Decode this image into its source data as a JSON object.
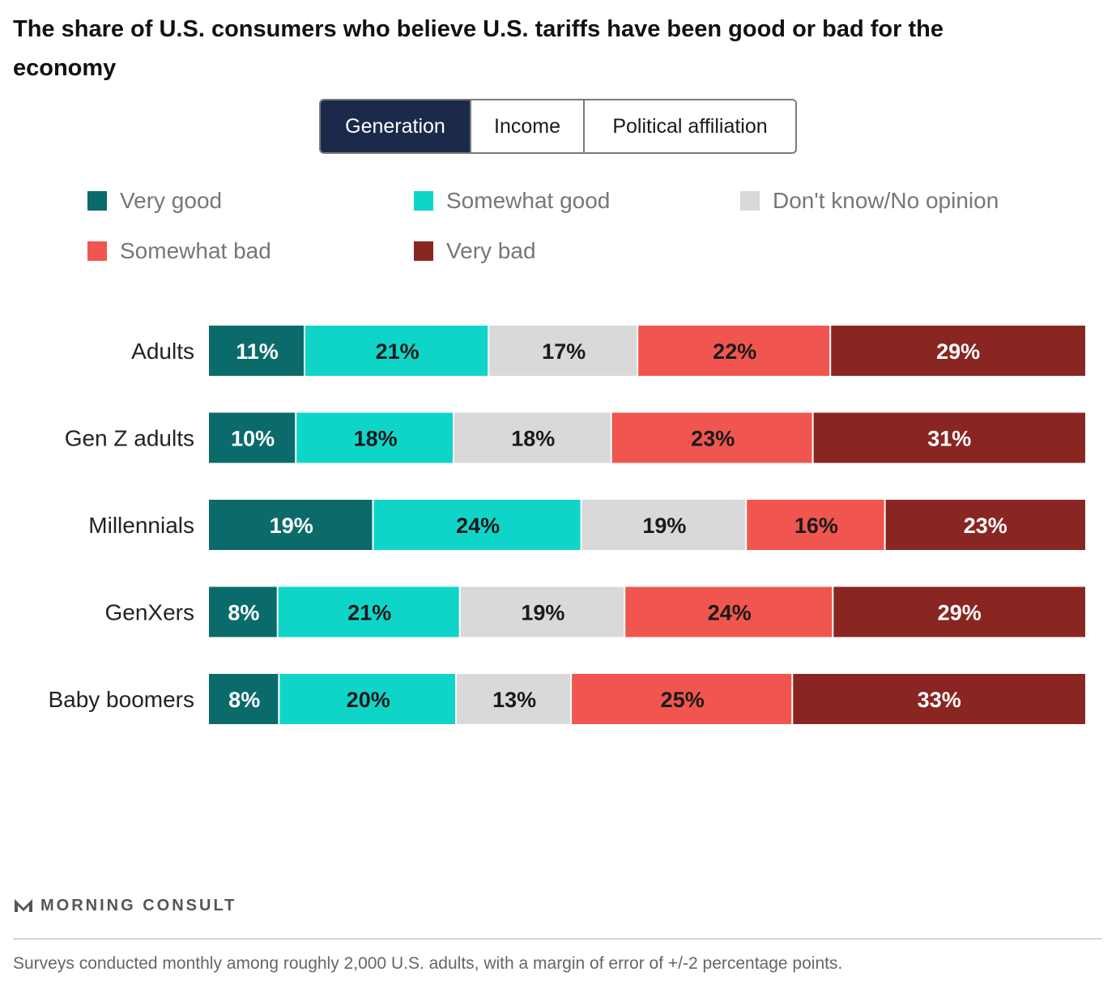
{
  "title": "The share of U.S. consumers who believe U.S. tariffs have been good or bad for the economy",
  "tabs": [
    {
      "label": "Generation",
      "active": true
    },
    {
      "label": "Income",
      "active": false
    },
    {
      "label": "Political affiliation",
      "active": false
    }
  ],
  "colors": {
    "very_good": "#0b6b6b",
    "somewhat_good": "#0fd5c9",
    "dont_know": "#d9d9d9",
    "somewhat_bad": "#f0564f",
    "very_bad": "#892622",
    "tab_active": "#1b2a4a"
  },
  "chart_data": {
    "type": "bar",
    "orientation": "horizontal",
    "stacked": true,
    "normalized": true,
    "categories": [
      "Adults",
      "Gen Z adults",
      "Millennials",
      "GenXers",
      "Baby boomers"
    ],
    "series": [
      {
        "name": "Very good",
        "values": [
          11,
          10,
          19,
          8,
          8
        ],
        "labels": [
          "11%",
          "10%",
          "19%",
          "8%",
          "8%"
        ]
      },
      {
        "name": "Somewhat good",
        "values": [
          21,
          18,
          24,
          21,
          20
        ],
        "labels": [
          "21%",
          "18%",
          "24%",
          "21%",
          "20%"
        ]
      },
      {
        "name": "Don't know/No opinion",
        "values": [
          17,
          18,
          19,
          19,
          13
        ],
        "labels": [
          "17%",
          "18%",
          "19%",
          "19%",
          "13%"
        ]
      },
      {
        "name": "Somewhat bad",
        "values": [
          22,
          23,
          16,
          24,
          25
        ],
        "labels": [
          "22%",
          "23%",
          "16%",
          "24%",
          "25%"
        ]
      },
      {
        "name": "Very bad",
        "values": [
          29,
          31,
          23,
          29,
          33
        ],
        "labels": [
          "29%",
          "31%",
          "23%",
          "29%",
          "33%"
        ]
      }
    ],
    "grid": false,
    "legend_position": "top"
  },
  "brand": {
    "name": "MORNING CONSULT",
    "mark_icon": "morning-consult-logo-icon"
  },
  "footnote": "Surveys conducted monthly among roughly 2,000 U.S. adults, with a margin of error of +/-2 percentage points."
}
